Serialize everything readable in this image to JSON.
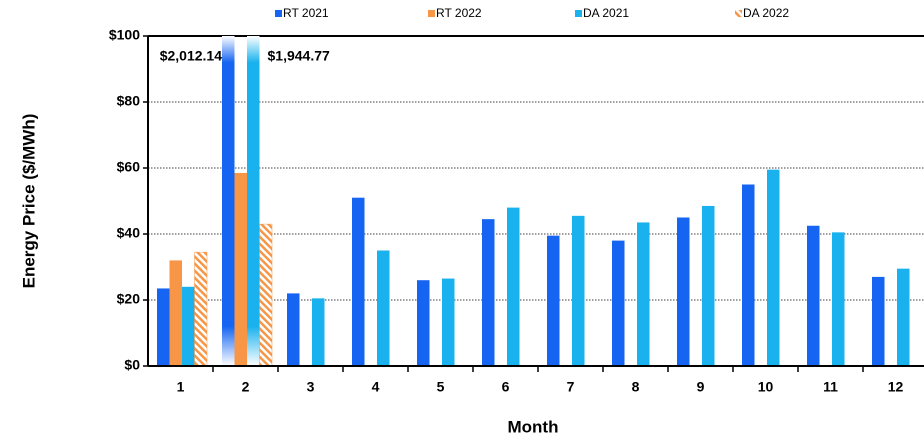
{
  "chart_data": {
    "type": "bar",
    "xlabel": "Month",
    "ylabel": "Energy Price ($/MWh)",
    "categories": [
      "1",
      "2",
      "3",
      "4",
      "5",
      "6",
      "7",
      "8",
      "9",
      "10",
      "11",
      "12"
    ],
    "series": [
      {
        "name": "RT 2021",
        "color": "#1565f2",
        "values": [
          23.5,
          2012.14,
          22,
          51,
          26,
          44.5,
          39.5,
          38,
          45,
          55,
          42.5,
          27
        ],
        "value_labels": [
          null,
          "$2,012.14",
          null,
          null,
          null,
          null,
          null,
          null,
          null,
          null,
          null,
          null
        ]
      },
      {
        "name": "RT 2022",
        "color": "#f79646",
        "values": [
          32,
          58.5,
          null,
          null,
          null,
          null,
          null,
          null,
          null,
          null,
          null,
          null
        ]
      },
      {
        "name": "DA 2021",
        "color": "#1ab2ee",
        "values": [
          24,
          1944.77,
          20.5,
          35,
          26.5,
          48,
          45.5,
          43.5,
          48.5,
          59.5,
          40.5,
          29.5
        ],
        "value_labels": [
          null,
          "$1,944.77",
          null,
          null,
          null,
          null,
          null,
          null,
          null,
          null,
          null,
          null
        ]
      },
      {
        "name": "DA 2022",
        "color": "#f79646",
        "hatch": true,
        "values": [
          34.5,
          43,
          null,
          null,
          null,
          null,
          null,
          null,
          null,
          null,
          null,
          null
        ]
      }
    ],
    "ylim": [
      0,
      100
    ],
    "yticks": [
      {
        "value": 0,
        "label": "$0"
      },
      {
        "value": 20,
        "label": "$20"
      },
      {
        "value": 40,
        "label": "$40"
      },
      {
        "value": 60,
        "label": "$60"
      },
      {
        "value": 80,
        "label": "$80"
      },
      {
        "value": 100,
        "label": "$100"
      }
    ],
    "grid": true,
    "legend": "top"
  }
}
